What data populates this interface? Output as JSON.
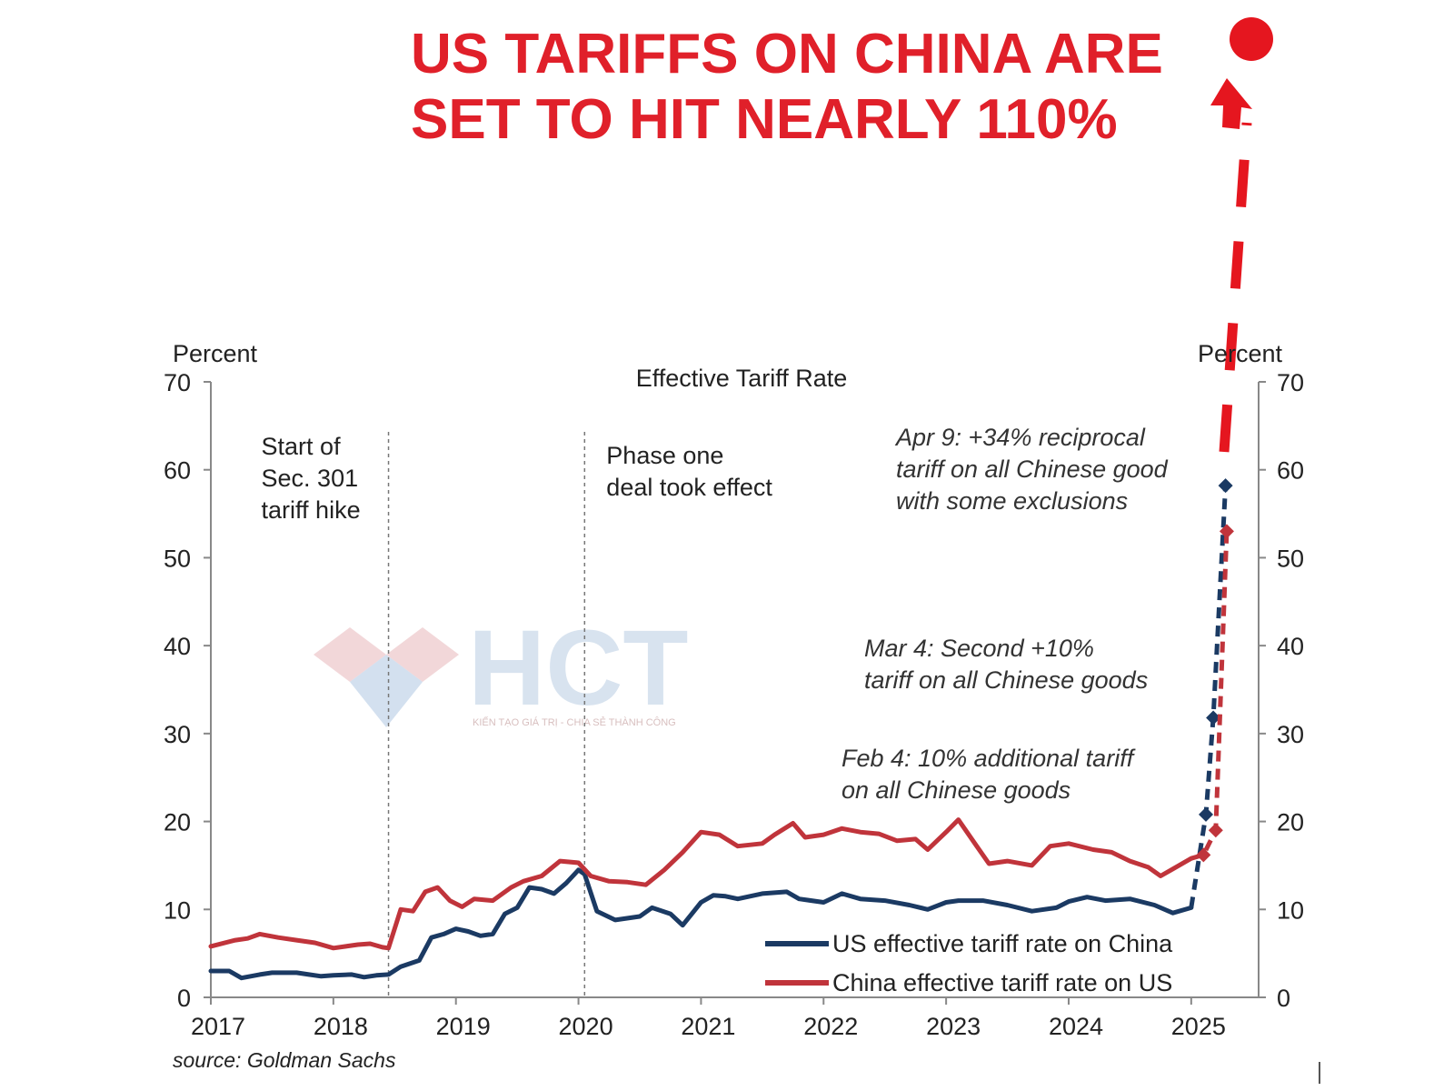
{
  "headline": {
    "line1": "US TARIFFS ON CHINA ARE",
    "line2": "SET TO HIT NEARLY 110%",
    "color": "#e0202a"
  },
  "watermark": {
    "brand": "HCT",
    "tagline": "KIẾN TẠO GIÁ TRỊ - CHIA SẺ THÀNH CÔNG"
  },
  "source": "source: Goldman Sachs",
  "chart_data": {
    "type": "line",
    "title": "Effective Tariff Rate",
    "ylabel_left": "Percent",
    "ylabel_right": "Percent",
    "ylim": [
      0,
      70
    ],
    "yticks": [
      0,
      10,
      20,
      30,
      40,
      50,
      60,
      70
    ],
    "xlim": [
      2017.0,
      2025.55
    ],
    "xticks": [
      "2017",
      "2018",
      "2019",
      "2020",
      "2021",
      "2022",
      "2023",
      "2024",
      "2025"
    ],
    "grid": false,
    "legend_position": "bottom-right",
    "vlines": [
      {
        "x": 2018.45,
        "label": [
          "Start of",
          "Sec. 301",
          "tariff hike"
        ]
      },
      {
        "x": 2020.05,
        "label": [
          "Phase one",
          "deal took effect"
        ]
      }
    ],
    "annotations": [
      {
        "lines": [
          "Apr 9: +34% reciprocal",
          "tariff on all Chinese good",
          "with some exclusions"
        ]
      },
      {
        "lines": [
          "Mar 4: Second +10%",
          "tariff on all Chinese goods"
        ]
      },
      {
        "lines": [
          "Feb 4: 10% additional tariff",
          "on all Chinese goods"
        ]
      }
    ],
    "projected_target": 110,
    "series": [
      {
        "name": "US effective tariff rate on China",
        "color": "#1b3a63",
        "x": [
          2017.0,
          2017.15,
          2017.25,
          2017.4,
          2017.5,
          2017.7,
          2017.8,
          2017.9,
          2018.0,
          2018.15,
          2018.25,
          2018.35,
          2018.45,
          2018.55,
          2018.7,
          2018.8,
          2018.9,
          2019.0,
          2019.1,
          2019.2,
          2019.3,
          2019.4,
          2019.5,
          2019.6,
          2019.7,
          2019.8,
          2019.9,
          2020.0,
          2020.05,
          2020.15,
          2020.3,
          2020.5,
          2020.6,
          2020.75,
          2020.85,
          2021.0,
          2021.1,
          2021.2,
          2021.3,
          2021.5,
          2021.7,
          2021.8,
          2022.0,
          2022.15,
          2022.3,
          2022.5,
          2022.7,
          2022.85,
          2023.0,
          2023.1,
          2023.3,
          2023.5,
          2023.7,
          2023.9,
          2024.0,
          2024.15,
          2024.3,
          2024.5,
          2024.7,
          2024.85,
          2025.0
        ],
        "values": [
          3.0,
          3.0,
          2.2,
          2.6,
          2.8,
          2.8,
          2.6,
          2.4,
          2.5,
          2.6,
          2.3,
          2.5,
          2.6,
          3.5,
          4.2,
          6.8,
          7.2,
          7.8,
          7.5,
          7.0,
          7.2,
          9.5,
          10.2,
          12.5,
          12.3,
          11.8,
          13.0,
          14.5,
          14.0,
          9.8,
          8.8,
          9.2,
          10.2,
          9.5,
          8.2,
          10.8,
          11.6,
          11.5,
          11.2,
          11.8,
          12.0,
          11.2,
          10.8,
          11.8,
          11.2,
          11.0,
          10.5,
          10.0,
          10.8,
          11.0,
          11.0,
          10.5,
          9.8,
          10.2,
          10.9,
          11.4,
          11.0,
          11.2,
          10.5,
          9.6,
          10.2
        ]
      },
      {
        "name": "China effective tariff rate on US",
        "color": "#c0343b",
        "x": [
          2017.0,
          2017.2,
          2017.3,
          2017.4,
          2017.55,
          2017.7,
          2017.85,
          2018.0,
          2018.2,
          2018.3,
          2018.4,
          2018.45,
          2018.55,
          2018.65,
          2018.75,
          2018.85,
          2018.95,
          2019.05,
          2019.15,
          2019.3,
          2019.45,
          2019.55,
          2019.7,
          2019.85,
          2020.0,
          2020.1,
          2020.25,
          2020.4,
          2020.55,
          2020.7,
          2020.85,
          2021.0,
          2021.15,
          2021.3,
          2021.5,
          2021.6,
          2021.75,
          2021.85,
          2022.0,
          2022.15,
          2022.3,
          2022.45,
          2022.6,
          2022.75,
          2022.85,
          2023.0,
          2023.1,
          2023.25,
          2023.35,
          2023.5,
          2023.7,
          2023.85,
          2024.0,
          2024.2,
          2024.35,
          2024.5,
          2024.65,
          2024.75,
          2024.85,
          2025.0
        ],
        "values": [
          5.8,
          6.5,
          6.7,
          7.2,
          6.8,
          6.5,
          6.2,
          5.6,
          6.0,
          6.1,
          5.7,
          5.6,
          10.0,
          9.8,
          12.0,
          12.5,
          11.0,
          10.3,
          11.2,
          11.0,
          12.5,
          13.2,
          13.8,
          15.5,
          15.3,
          13.8,
          13.2,
          13.1,
          12.8,
          14.5,
          16.5,
          18.8,
          18.5,
          17.2,
          17.5,
          18.5,
          19.8,
          18.2,
          18.5,
          19.2,
          18.8,
          18.6,
          17.8,
          18.0,
          16.8,
          18.8,
          20.2,
          17.2,
          15.2,
          15.5,
          15.0,
          17.2,
          17.5,
          16.8,
          16.5,
          15.5,
          14.8,
          13.8,
          14.6,
          15.8
        ]
      }
    ],
    "projections": [
      {
        "series": "US effective tariff rate on China",
        "x": [
          2025.0,
          2025.12,
          2025.18,
          2025.28
        ],
        "values": [
          10.2,
          20.8,
          31.8,
          58.2
        ]
      },
      {
        "series": "China effective tariff rate on US",
        "x": [
          2025.0,
          2025.1,
          2025.2,
          2025.29
        ],
        "values": [
          15.8,
          16.2,
          19.0,
          53.0
        ]
      }
    ]
  }
}
